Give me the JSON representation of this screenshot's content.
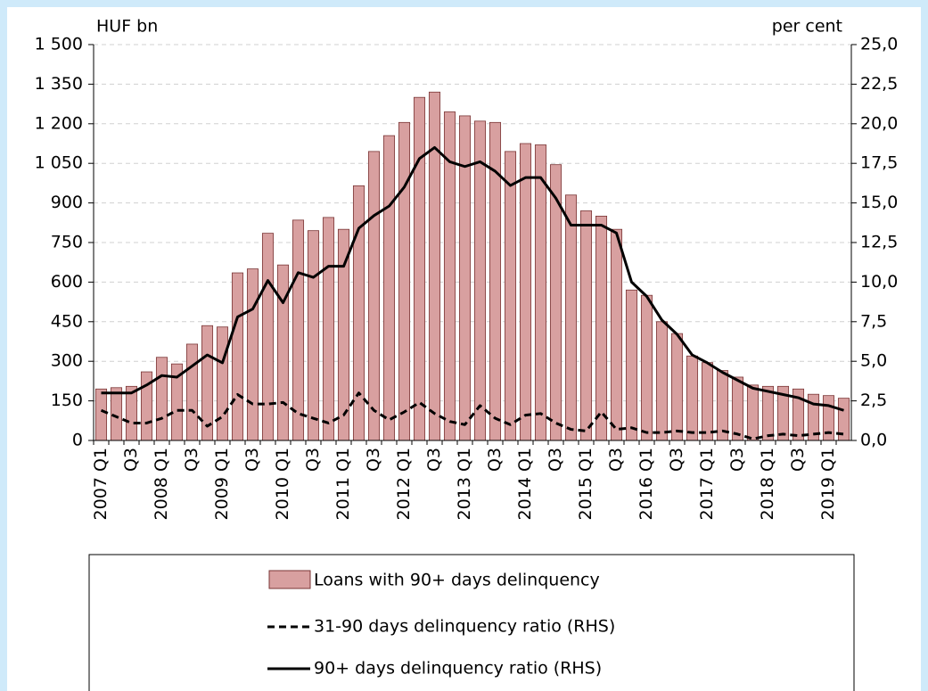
{
  "chart_data": {
    "type": "bar",
    "y_label": "HUF bn",
    "y2_label": "per cent",
    "categories": [
      "2007 Q1",
      null,
      "Q3",
      null,
      "2008 Q1",
      null,
      "Q3",
      null,
      "2009 Q1",
      null,
      "Q3",
      null,
      "2010 Q1",
      null,
      "Q3",
      null,
      "2011 Q1",
      null,
      "Q3",
      null,
      "2012 Q1",
      null,
      "Q3",
      null,
      "2013 Q1",
      null,
      "Q3",
      null,
      "2014 Q1",
      null,
      "Q3",
      null,
      "2015 Q1",
      null,
      "Q3",
      null,
      "2016 Q1",
      null,
      "Q3",
      null,
      "2017 Q1",
      null,
      "Q3",
      null,
      "2018 Q1",
      null,
      "Q3",
      null,
      "2019 Q1",
      null
    ],
    "series": [
      {
        "name": "Loans with 90+ days delinquency",
        "type": "bar",
        "color": "#d8a0a0",
        "values": [
          195,
          200,
          205,
          260,
          315,
          290,
          365,
          435,
          430,
          635,
          650,
          785,
          665,
          835,
          795,
          845,
          800,
          965,
          1095,
          1155,
          1205,
          1300,
          1320,
          1245,
          1230,
          1210,
          1205,
          1095,
          1125,
          1120,
          1045,
          930,
          870,
          850,
          800,
          570,
          550,
          450,
          405,
          320,
          295,
          265,
          240,
          210,
          205,
          205,
          195,
          175,
          170,
          160
        ]
      },
      {
        "name": "31-90 days delinquency ratio (RHS)",
        "type": "line",
        "style": "dashed",
        "axis": "y2",
        "color": "#000000",
        "values": [
          1.9,
          1.5,
          1.1,
          1.1,
          1.4,
          1.9,
          1.9,
          0.9,
          1.5,
          2.9,
          2.3,
          2.3,
          2.4,
          1.7,
          1.4,
          1.1,
          1.6,
          3.0,
          1.9,
          1.3,
          1.8,
          2.4,
          1.7,
          1.2,
          1.0,
          2.2,
          1.4,
          1.0,
          1.6,
          1.7,
          1.1,
          0.7,
          0.6,
          1.8,
          0.7,
          0.8,
          0.5,
          0.5,
          0.6,
          0.5,
          0.5,
          0.6,
          0.4,
          0.1,
          0.3,
          0.4,
          0.3,
          0.4,
          0.5,
          0.4
        ]
      },
      {
        "name": "90+ days delinquency ratio (RHS)",
        "type": "line",
        "style": "solid",
        "axis": "y2",
        "color": "#000000",
        "values": [
          3.0,
          3.0,
          3.0,
          3.5,
          4.1,
          4.0,
          4.7,
          5.4,
          4.9,
          7.8,
          8.3,
          10.1,
          8.7,
          10.6,
          10.3,
          11.0,
          11.0,
          13.4,
          14.2,
          14.8,
          16.0,
          17.8,
          18.5,
          17.6,
          17.3,
          17.6,
          17.0,
          16.1,
          16.6,
          16.6,
          15.3,
          13.6,
          13.6,
          13.6,
          13.1,
          10.0,
          9.1,
          7.6,
          6.7,
          5.4,
          4.9,
          4.3,
          3.8,
          3.3,
          3.1,
          2.9,
          2.7,
          2.3,
          2.2,
          1.9
        ]
      }
    ],
    "ylim": [
      0,
      1500
    ],
    "yticks": [
      0,
      150,
      300,
      450,
      600,
      750,
      900,
      {
        "value": 1050,
        "label": "1 050"
      },
      {
        "value": 1200,
        "label": "1 200"
      },
      {
        "value": 1350,
        "label": "1 350"
      },
      {
        "value": 1500,
        "label": "1 500"
      }
    ],
    "y2lim": [
      0,
      25
    ],
    "y2ticks": [
      {
        "value": 0,
        "label": "0,0"
      },
      {
        "value": 2.5,
        "label": "2,5"
      },
      {
        "value": 5,
        "label": "5,0"
      },
      {
        "value": 7.5,
        "label": "7,5"
      },
      {
        "value": 10,
        "label": "10,0"
      },
      {
        "value": 12.5,
        "label": "12,5"
      },
      {
        "value": 15,
        "label": "15,0"
      },
      {
        "value": 17.5,
        "label": "17,5"
      },
      {
        "value": 20,
        "label": "20,0"
      },
      {
        "value": 22.5,
        "label": "22,5"
      },
      {
        "value": 25,
        "label": "25,0"
      }
    ],
    "grid": true
  }
}
